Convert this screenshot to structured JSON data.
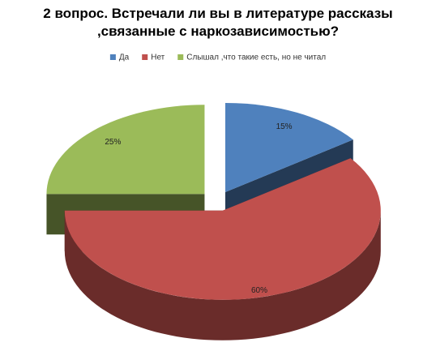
{
  "chart_data": {
    "type": "pie3d",
    "title": "2 вопрос. Встречали ли вы в литературе рассказы ,связанные с наркозависимостью?",
    "categories": [
      "Да",
      "Нет",
      "Слышал ,что такие есть, но не читал"
    ],
    "values": [
      15,
      60,
      25
    ],
    "value_labels": [
      "15%",
      "60%",
      "25%"
    ],
    "colors": [
      "#4f81bd",
      "#c0504d",
      "#9bbb59"
    ],
    "legend": "top"
  }
}
